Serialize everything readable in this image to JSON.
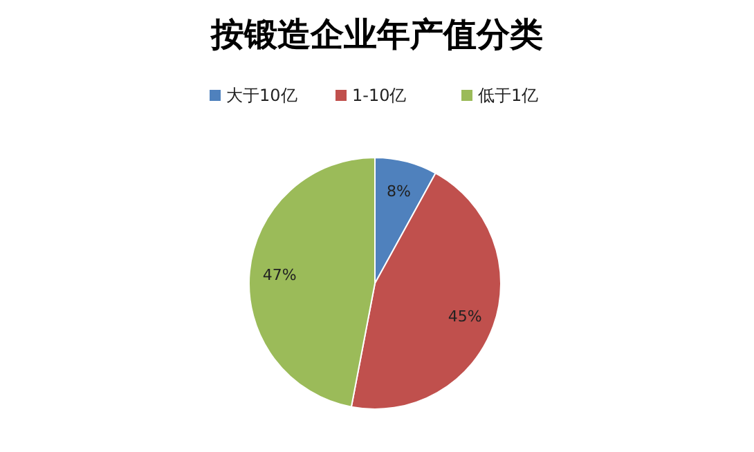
{
  "chart_data": {
    "type": "pie",
    "title": "按锻造企业年产值分类",
    "categories": [
      "大于10亿",
      "1-10亿",
      "低于1亿"
    ],
    "values": [
      8,
      45,
      47
    ],
    "colors": [
      "#4f81bd",
      "#c0504d",
      "#9bbb59"
    ],
    "value_labels": [
      "8%",
      "45%",
      "47%"
    ],
    "legend": "top"
  }
}
